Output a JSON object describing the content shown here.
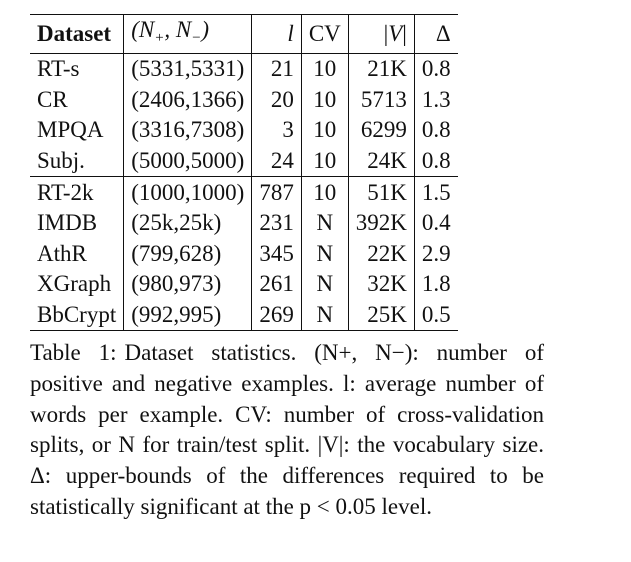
{
  "table": {
    "headers": {
      "dataset": "Dataset",
      "counts": "(N+, N−)",
      "l": "l",
      "cv": "CV",
      "v": "|V|",
      "delta": "Δ"
    },
    "rows": [
      {
        "dataset": "RT-s",
        "counts": "(5331,5331)",
        "l": "21",
        "cv": "10",
        "v": "21K",
        "delta": "0.8"
      },
      {
        "dataset": "CR",
        "counts": "(2406,1366)",
        "l": "20",
        "cv": "10",
        "v": "5713",
        "delta": "1.3"
      },
      {
        "dataset": "MPQA",
        "counts": "(3316,7308)",
        "l": "3",
        "cv": "10",
        "v": "6299",
        "delta": "0.8"
      },
      {
        "dataset": "Subj.",
        "counts": "(5000,5000)",
        "l": "24",
        "cv": "10",
        "v": "24K",
        "delta": "0.8"
      },
      {
        "dataset": "RT-2k",
        "counts": "(1000,1000)",
        "l": "787",
        "cv": "10",
        "v": "51K",
        "delta": "1.5"
      },
      {
        "dataset": "IMDB",
        "counts": "(25k,25k)",
        "l": "231",
        "cv": "N",
        "v": "392K",
        "delta": "0.4"
      },
      {
        "dataset": "AthR",
        "counts": "(799,628)",
        "l": "345",
        "cv": "N",
        "v": "22K",
        "delta": "2.9"
      },
      {
        "dataset": "XGraph",
        "counts": "(980,973)",
        "l": "261",
        "cv": "N",
        "v": "32K",
        "delta": "1.8"
      },
      {
        "dataset": "BbCrypt",
        "counts": "(992,995)",
        "l": "269",
        "cv": "N",
        "v": "25K",
        "delta": "0.5"
      }
    ]
  },
  "caption": {
    "label": "Table 1:",
    "text": "Dataset statistics. (N+, N−): number of positive and negative examples. l: average number of words per example. CV: number of cross-validation splits, or N for train/test split. |V|: the vocabulary size. Δ: upper-bounds of the differences required to be statistically significant at the p < 0.05 level."
  }
}
